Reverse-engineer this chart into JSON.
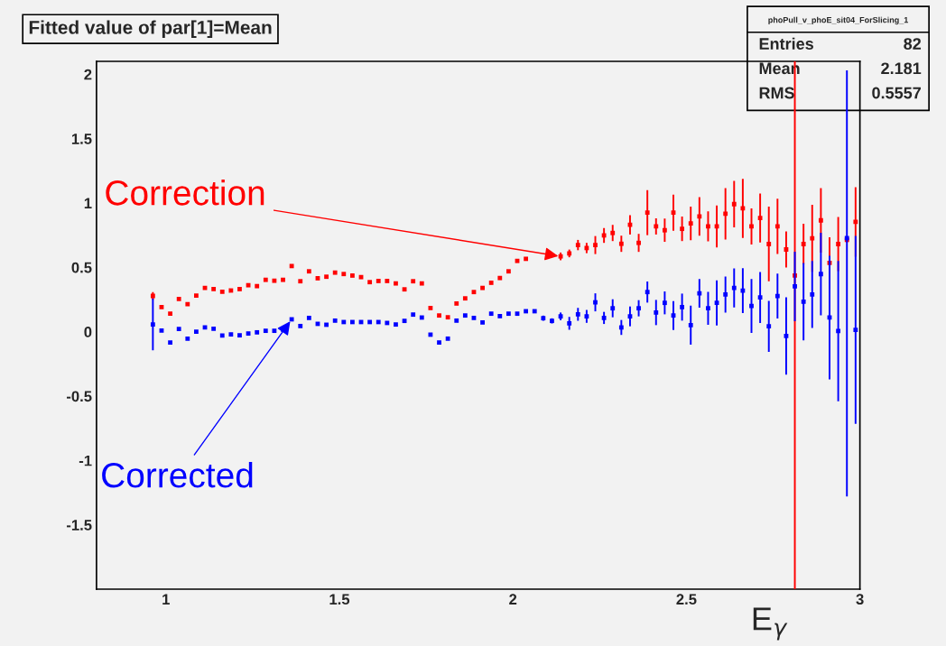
{
  "chart_data": {
    "type": "scatter",
    "title": "Fitted value of par[1]=Mean",
    "xlabel": "E$_{γ}$",
    "xlim": [
      0.8,
      3.0
    ],
    "ylim": [
      -2.0,
      2.1
    ],
    "xticks": [
      1,
      1.5,
      2,
      2.5,
      3
    ],
    "yticks": [
      -1.5,
      -1,
      -0.5,
      0,
      0.5,
      1,
      1.5,
      2
    ],
    "grid": false,
    "legend": false,
    "marker": "square",
    "x": [
      0.9625,
      0.9875,
      1.0125,
      1.0375,
      1.0625,
      1.0875,
      1.1125,
      1.1375,
      1.1625,
      1.1875,
      1.2125,
      1.2375,
      1.2625,
      1.2875,
      1.3125,
      1.3375,
      1.3625,
      1.3875,
      1.4125,
      1.4375,
      1.4625,
      1.4875,
      1.5125,
      1.5375,
      1.5625,
      1.5875,
      1.6125,
      1.6375,
      1.6625,
      1.6875,
      1.7125,
      1.7375,
      1.7625,
      1.7875,
      1.8125,
      1.8375,
      1.8625,
      1.8875,
      1.9125,
      1.9375,
      1.9625,
      1.9875,
      2.0125,
      2.0375,
      2.0625,
      2.0875,
      2.1125,
      2.1375,
      2.1625,
      2.1875,
      2.2125,
      2.2375,
      2.2625,
      2.2875,
      2.3125,
      2.3375,
      2.3625,
      2.3875,
      2.4125,
      2.4375,
      2.4625,
      2.4875,
      2.5125,
      2.5375,
      2.5625,
      2.5875,
      2.6125,
      2.6375,
      2.6625,
      2.6875,
      2.7125,
      2.7375,
      2.7625,
      2.7875,
      2.8125,
      2.8375,
      2.8625,
      2.8875,
      2.9125,
      2.9375,
      2.9625,
      2.9875
    ],
    "series": [
      {
        "color": "#ff0000",
        "values": [
          0.278,
          0.191,
          0.14,
          0.254,
          0.214,
          0.28,
          0.34,
          0.331,
          0.31,
          0.32,
          0.331,
          0.361,
          0.354,
          0.403,
          0.396,
          0.403,
          0.51,
          0.392,
          0.469,
          0.415,
          0.427,
          0.459,
          0.448,
          0.436,
          0.424,
          0.385,
          0.394,
          0.394,
          0.375,
          0.329,
          0.392,
          0.375,
          0.184,
          0.126,
          0.112,
          0.219,
          0.259,
          0.308,
          0.34,
          0.38,
          0.417,
          0.469,
          0.55,
          0.566,
          null,
          null,
          null,
          0.585,
          0.608,
          0.673,
          0.65,
          0.673,
          0.748,
          0.767,
          0.683,
          0.83,
          0.69,
          0.925,
          0.818,
          0.788,
          0.925,
          0.799,
          0.841,
          0.895,
          0.818,
          0.818,
          0.916,
          0.991,
          0.958,
          0.818,
          0.883,
          0.681,
          0.818,
          0.639,
          0.436,
          0.681,
          0.725,
          0.865,
          0.534,
          0.681,
          0.713,
          0.853
        ],
        "errors": [
          0.03,
          0.01,
          0.01,
          0.01,
          0.01,
          0.01,
          0.01,
          0.01,
          0.01,
          0.01,
          0.01,
          0.01,
          0.01,
          0.01,
          0.01,
          0.01,
          0.01,
          0.01,
          0.01,
          0.01,
          0.01,
          0.01,
          0.01,
          0.01,
          0.01,
          0.01,
          0.01,
          0.01,
          0.01,
          0.01,
          0.01,
          0.01,
          0.01,
          0.01,
          0.01,
          0.01,
          0.01,
          0.01,
          0.01,
          0.01,
          0.01,
          0.01,
          0.01,
          0.01,
          null,
          null,
          null,
          0.03,
          0.03,
          0.04,
          0.04,
          0.07,
          0.058,
          0.063,
          0.063,
          0.075,
          0.07,
          0.175,
          0.063,
          0.09,
          0.14,
          0.095,
          0.13,
          0.15,
          0.117,
          0.163,
          0.2,
          0.18,
          0.23,
          0.14,
          0.19,
          0.29,
          0.215,
          0.14,
          [
            -2.0,
            2.1
          ],
          0.157,
          0.26,
          0.25,
          0.2,
          0.21,
          0.02,
          0.27
        ]
      },
      {
        "color": "#0000ff",
        "values": [
          0.056,
          0.009,
          -0.084,
          0.021,
          -0.054,
          0.0,
          0.033,
          0.023,
          -0.03,
          -0.021,
          -0.028,
          -0.014,
          -0.005,
          0.007,
          0.007,
          0.016,
          0.096,
          0.044,
          0.107,
          0.061,
          0.054,
          0.086,
          0.075,
          0.075,
          0.075,
          0.075,
          0.075,
          0.068,
          0.056,
          0.084,
          0.133,
          0.11,
          -0.023,
          -0.084,
          -0.054,
          0.086,
          0.126,
          0.107,
          0.072,
          0.14,
          0.121,
          0.14,
          0.14,
          0.159,
          0.159,
          0.105,
          0.084,
          0.119,
          0.065,
          0.135,
          0.119,
          0.228,
          0.107,
          0.182,
          0.033,
          0.119,
          0.182,
          0.308,
          0.149,
          0.224,
          0.126,
          0.191,
          0.051,
          0.298,
          0.182,
          0.224,
          0.289,
          0.34,
          0.319,
          0.2,
          0.266,
          0.042,
          0.277,
          -0.033,
          0.352,
          0.233,
          0.289,
          0.448,
          0.11,
          0.005,
          0.727,
          0.014
        ],
        "errors": [
          0.2,
          0.01,
          0.01,
          0.01,
          0.01,
          0.01,
          0.01,
          0.01,
          0.01,
          0.01,
          0.01,
          0.01,
          0.01,
          0.01,
          0.01,
          0.01,
          0.01,
          0.01,
          0.01,
          0.01,
          0.01,
          0.01,
          0.01,
          0.01,
          0.01,
          0.01,
          0.01,
          0.01,
          0.01,
          0.01,
          0.01,
          0.01,
          0.01,
          0.01,
          0.01,
          0.01,
          0.01,
          0.01,
          0.01,
          0.01,
          0.01,
          0.01,
          0.01,
          0.01,
          0.01,
          0.02,
          0.02,
          0.03,
          0.05,
          0.05,
          0.05,
          0.07,
          0.047,
          0.07,
          0.058,
          0.077,
          0.063,
          0.082,
          0.098,
          0.089,
          0.112,
          0.105,
          0.152,
          0.112,
          0.128,
          0.175,
          0.14,
          0.152,
          0.175,
          0.21,
          0.198,
          0.198,
          0.175,
          0.3,
          0.27,
          0.3,
          0.26,
          0.32,
          0.48,
          0.545,
          [
            -1.28,
            2.03
          ],
          0.73
        ]
      }
    ],
    "annotations": [
      {
        "text": "Correction",
        "x": 2.1375,
        "y": 0.585
      },
      {
        "text": "Corrected",
        "x": 1.3625,
        "y": 0.096
      },
      "phoPull_v_phoE_sit04_ForSlicing_1",
      "Entries 82",
      "Mean 2.181",
      "RMS 0.5557"
    ]
  }
}
